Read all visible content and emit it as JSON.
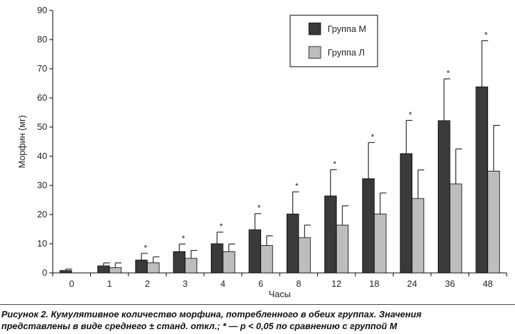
{
  "chart_data": {
    "type": "bar",
    "title": "",
    "xlabel": "Часы",
    "ylabel": "Морфин (мг)",
    "ylim": [
      0,
      90
    ],
    "yticks": [
      0,
      10,
      20,
      30,
      40,
      50,
      60,
      70,
      80,
      90
    ],
    "categories": [
      "0",
      "1",
      "2",
      "3",
      "4",
      "6",
      "8",
      "12",
      "18",
      "24",
      "36",
      "48"
    ],
    "series": [
      {
        "name": "Группа М",
        "color": "#3a3a3a",
        "values": [
          0.8,
          2.4,
          4.4,
          7.3,
          10.0,
          14.8,
          20.2,
          26.4,
          32.3,
          40.9,
          52.2,
          63.8
        ],
        "errors": [
          0.5,
          1.0,
          2.3,
          2.6,
          4.0,
          5.5,
          7.6,
          9.0,
          12.4,
          11.4,
          14.3,
          15.8
        ]
      },
      {
        "name": "Группа Л",
        "color": "#bdbdbd",
        "values": [
          null,
          1.8,
          3.5,
          5.0,
          7.3,
          9.4,
          12.1,
          16.4,
          20.2,
          25.5,
          30.5,
          34.9
        ],
        "errors": [
          null,
          1.6,
          2.0,
          2.7,
          2.6,
          3.3,
          4.3,
          6.6,
          7.2,
          9.8,
          12.0,
          15.7
        ]
      }
    ],
    "significant": [
      "2",
      "3",
      "4",
      "6",
      "8",
      "12",
      "18",
      "24",
      "36",
      "48"
    ],
    "significance_marker": "*",
    "legend": {
      "placement": "top-right",
      "entries": [
        "Группа М",
        "Группа Л"
      ]
    },
    "grid": false
  },
  "caption": {
    "line1": "Рисунок 2. Кумулятивное количество морфина, потребленного в обеих группах. Значения",
    "line2": "представлены в виде среднего ± станд. откл.; * — р < 0,05 по сравнению с группой М"
  }
}
